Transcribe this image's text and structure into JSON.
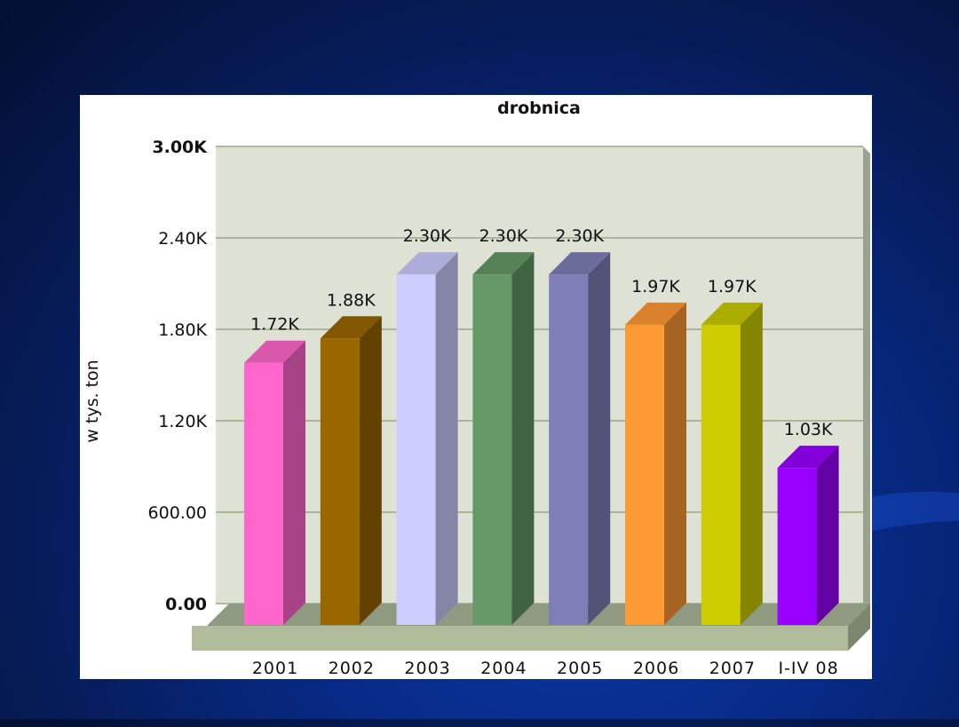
{
  "chart_data": {
    "type": "bar",
    "title": "drobnica",
    "xlabel": "",
    "ylabel": "w tys. ton",
    "ylim": [
      0,
      3000
    ],
    "yticks": [
      "0.00",
      "600.00",
      "1.20K",
      "1.80K",
      "2.40K",
      "3.00K"
    ],
    "categories": [
      "2001",
      "2002",
      "2003",
      "2004",
      "2005",
      "2006",
      "2007",
      "I-IV 08"
    ],
    "values": [
      1720,
      1880,
      2300,
      2300,
      2300,
      1970,
      1970,
      1030
    ],
    "data_labels": [
      "1.72K",
      "1.88K",
      "2.30K",
      "2.30K",
      "2.30K",
      "1.97K",
      "1.97K",
      "1.03K"
    ],
    "colors": [
      "#ff66cc",
      "#996600",
      "#ccccff",
      "#669966",
      "#7f7fb8",
      "#ff9933",
      "#cccc00",
      "#9900ff"
    ],
    "grid": true,
    "legend": "none"
  }
}
